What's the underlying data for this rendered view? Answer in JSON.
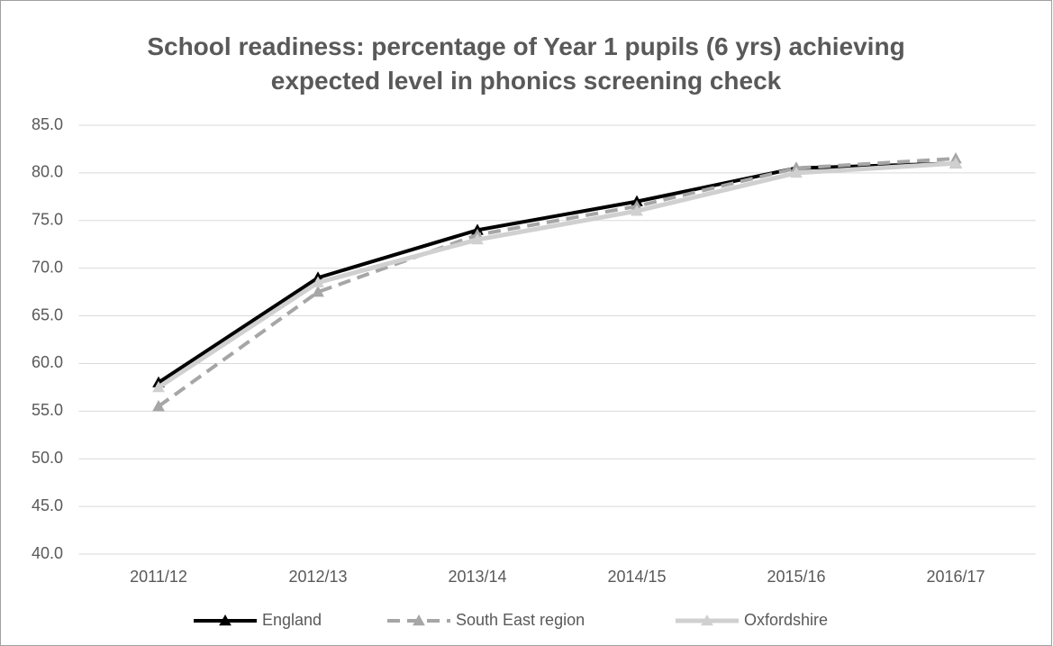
{
  "chart_data": {
    "type": "line",
    "title": "School readiness: percentage of Year 1 pupils (6 yrs) achieving expected level in phonics screening check",
    "categories": [
      "2011/12",
      "2012/13",
      "2013/14",
      "2014/15",
      "2015/16",
      "2016/17"
    ],
    "series": [
      {
        "name": "England",
        "color": "#000000",
        "line_style": "solid",
        "values": [
          58.0,
          69.0,
          74.0,
          77.0,
          80.5,
          81.0
        ]
      },
      {
        "name": "South East region",
        "color": "#a6a6a6",
        "line_style": "dashed",
        "values": [
          55.5,
          67.5,
          73.5,
          76.5,
          80.5,
          81.5
        ]
      },
      {
        "name": "Oxfordshire",
        "color": "#d0d0d0",
        "line_style": "solid",
        "values": [
          57.5,
          68.5,
          73.0,
          76.0,
          80.0,
          81.0
        ]
      }
    ],
    "ylim": [
      40,
      85
    ],
    "yticks": [
      {
        "value": 40,
        "label": "40.0"
      },
      {
        "value": 45,
        "label": "45.0"
      },
      {
        "value": 50,
        "label": "50.0"
      },
      {
        "value": 55,
        "label": "55.0"
      },
      {
        "value": 60,
        "label": "60.0"
      },
      {
        "value": 65,
        "label": "65.0"
      },
      {
        "value": 70,
        "label": "70.0"
      },
      {
        "value": 75,
        "label": "75.0"
      },
      {
        "value": 80,
        "label": "80.0"
      },
      {
        "value": 85,
        "label": "85.0"
      }
    ],
    "grid": true,
    "marker": "triangle",
    "legend": "bottom"
  }
}
